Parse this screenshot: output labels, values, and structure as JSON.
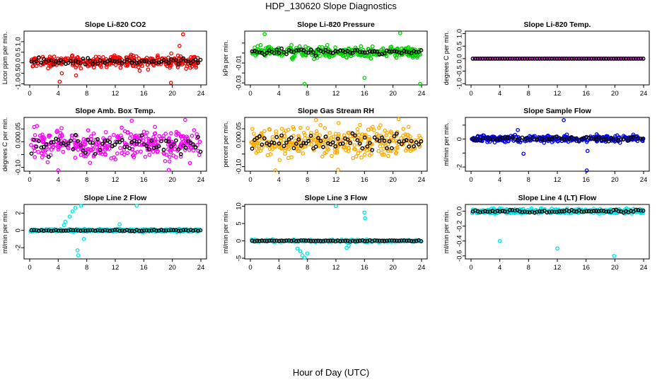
{
  "title": "HDP_130620  Slope Diagnostics",
  "xlabel": "Hour of Day (UTC)",
  "chart_data": [
    {
      "type": "scatter",
      "title": "Slope Li-820 CO2",
      "ylabel": "Licor ppm per min.",
      "xlim": [
        0,
        24
      ],
      "xticks": [
        0,
        4,
        8,
        12,
        16,
        20,
        24
      ],
      "ylim": [
        -1.05,
        1.5
      ],
      "yticks": [
        -1.0,
        -0.5,
        0.0,
        0.5,
        1.0
      ],
      "ytick_labels": [
        "-1.0",
        "-0.5",
        "0.0",
        "0.5",
        "1.0"
      ],
      "color": "#ff0000",
      "center": 0.05,
      "spread": 0.22,
      "outliers": [
        {
          "x": 21.5,
          "y": 1.35
        },
        {
          "x": 21.0,
          "y": 0.8
        },
        {
          "x": 4.5,
          "y": -0.5
        },
        {
          "x": 19.8,
          "y": -0.95
        },
        {
          "x": 4.2,
          "y": -0.9
        },
        {
          "x": 6.5,
          "y": -0.6
        }
      ]
    },
    {
      "type": "scatter",
      "title": "Slope Li-820 Pressure",
      "ylabel": "kPa per min.",
      "xlim": [
        0,
        24
      ],
      "xticks": [
        0,
        4,
        8,
        12,
        16,
        20,
        24
      ],
      "ylim": [
        -0.032,
        0.022
      ],
      "yticks": [
        -0.03,
        -0.02,
        -0.01,
        0.0,
        0.01
      ],
      "ytick_labels": [
        "-0.03",
        "",
        "-0.01",
        "",
        ""
      ],
      "color": "#00d000",
      "center": 0.001,
      "spread": 0.004,
      "outliers": [
        {
          "x": 7.6,
          "y": -0.031
        },
        {
          "x": 23.8,
          "y": -0.031
        },
        {
          "x": 16.0,
          "y": -0.025
        },
        {
          "x": 2.0,
          "y": 0.019
        },
        {
          "x": 21.0,
          "y": 0.02
        }
      ]
    },
    {
      "type": "scatter",
      "title": "Slope Li-820 Temp.",
      "ylabel": "degrees C per min.",
      "xlim": [
        0,
        24
      ],
      "xticks": [
        0,
        4,
        8,
        12,
        16,
        20,
        24
      ],
      "ylim": [
        -1.05,
        1.1
      ],
      "yticks": [
        -1.0,
        -0.5,
        0.0,
        0.5,
        1.0
      ],
      "ytick_labels": [
        "-1.0",
        "-0.5",
        "0.0",
        "0.5",
        "1.0"
      ],
      "color": "#ff00ff",
      "center": 0.0,
      "spread": 0.0,
      "regular": true,
      "outliers": []
    },
    {
      "type": "scatter",
      "title": "Slope Amb. Box Temp.",
      "ylabel": "degrees C per min.",
      "xlim": [
        0,
        24
      ],
      "xticks": [
        0,
        4,
        8,
        12,
        16,
        20,
        24
      ],
      "ylim": [
        -0.115,
        0.095
      ],
      "yticks": [
        -0.1,
        -0.05,
        0.0,
        0.05
      ],
      "ytick_labels": [
        "-0.10",
        "",
        "0.00",
        "0.05"
      ],
      "color": "#ff00ff",
      "center": -0.01,
      "spread": 0.045,
      "outliers": [
        {
          "x": 4.0,
          "y": -0.112
        },
        {
          "x": 14.3,
          "y": 0.082
        },
        {
          "x": 21.8,
          "y": 0.085
        },
        {
          "x": 19.5,
          "y": -0.11
        }
      ]
    },
    {
      "type": "scatter",
      "title": "Slope Gas Stream RH",
      "ylabel": "percent per min.",
      "xlim": [
        0,
        24
      ],
      "xticks": [
        0,
        4,
        8,
        12,
        16,
        20,
        24
      ],
      "ylim": [
        -0.118,
        0.095
      ],
      "yticks": [
        -0.1,
        -0.05,
        0.0,
        0.05
      ],
      "ytick_labels": [
        "-0.10",
        "",
        "0.00",
        "0.05"
      ],
      "color": "#ffaa00",
      "center": 0.0,
      "spread": 0.042,
      "outliers": [
        {
          "x": 3.5,
          "y": -0.115
        },
        {
          "x": 9.2,
          "y": 0.085
        },
        {
          "x": 20.8,
          "y": 0.088
        },
        {
          "x": 12.3,
          "y": -0.112
        }
      ]
    },
    {
      "type": "scatter",
      "title": "Slope Sample Flow",
      "ylabel": "ml/min per min.",
      "xlim": [
        0,
        24
      ],
      "xticks": [
        0,
        4,
        8,
        12,
        16,
        20,
        24
      ],
      "ylim": [
        -2.3,
        1.55
      ],
      "yticks": [
        -2,
        -1,
        0,
        1
      ],
      "ytick_labels": [
        "-2",
        "",
        "0",
        ""
      ],
      "color": "#0000ff",
      "center": 0.02,
      "spread": 0.18,
      "outliers": [
        {
          "x": 16.1,
          "y": -2.25
        },
        {
          "x": 7.3,
          "y": -1.05
        },
        {
          "x": 12.9,
          "y": 1.35
        },
        {
          "x": 16.2,
          "y": -0.85
        },
        {
          "x": 6.5,
          "y": 0.65
        }
      ]
    },
    {
      "type": "scatter",
      "title": "Slope Line 2 Flow",
      "ylabel": "ml/min per min.",
      "xlim": [
        0,
        24
      ],
      "xticks": [
        0,
        4,
        8,
        12,
        16,
        20,
        24
      ],
      "ylim": [
        -3.3,
        3.0
      ],
      "yticks": [
        -2,
        0,
        2
      ],
      "ytick_labels": [
        "-2",
        "0",
        "2"
      ],
      "color": "#00e5e5",
      "center": 0.0,
      "spread": 0.12,
      "outliers": [
        {
          "x": 5.0,
          "y": 1.0
        },
        {
          "x": 5.6,
          "y": 1.6
        },
        {
          "x": 6.0,
          "y": 2.2
        },
        {
          "x": 6.4,
          "y": 2.6
        },
        {
          "x": 7.2,
          "y": 2.85
        },
        {
          "x": 6.7,
          "y": -2.3
        },
        {
          "x": 6.8,
          "y": -2.9
        },
        {
          "x": 15.0,
          "y": 2.85
        },
        {
          "x": 12.6,
          "y": 0.7
        },
        {
          "x": 4.8,
          "y": 0.6
        },
        {
          "x": 7.6,
          "y": -1.0
        }
      ]
    },
    {
      "type": "scatter",
      "title": "Slope Line 3 Flow",
      "ylabel": "ml/min per min.",
      "xlim": [
        0,
        24
      ],
      "xticks": [
        0,
        4,
        8,
        12,
        16,
        20,
        24
      ],
      "ylim": [
        -5.2,
        10.5
      ],
      "yticks": [
        -5,
        0,
        5,
        10
      ],
      "ytick_labels": [
        "-5",
        "0",
        "5",
        "10"
      ],
      "color": "#00e5e5",
      "center": 0.0,
      "spread": 0.25,
      "outliers": [
        {
          "x": 12.0,
          "y": 10.0
        },
        {
          "x": 16.0,
          "y": 8.2
        },
        {
          "x": 16.1,
          "y": 6.5
        },
        {
          "x": 7.0,
          "y": -3.0
        },
        {
          "x": 7.3,
          "y": -4.2
        },
        {
          "x": 7.6,
          "y": -4.8
        },
        {
          "x": 8.0,
          "y": -3.6
        },
        {
          "x": 13.5,
          "y": -2.0
        },
        {
          "x": 6.6,
          "y": -2.2
        },
        {
          "x": 13.8,
          "y": -1.4
        }
      ]
    },
    {
      "type": "scatter",
      "title": "Slope Line 4 (LT) Flow",
      "ylabel": "ml/min per min.",
      "xlim": [
        0,
        24
      ],
      "xticks": [
        0,
        4,
        8,
        12,
        16,
        20,
        24
      ],
      "ylim": [
        -0.64,
        0.09
      ],
      "yticks": [
        -0.6,
        -0.4,
        -0.2,
        0.0
      ],
      "ytick_labels": [
        "-0.6",
        "-0.4",
        "-0.2",
        "0.0"
      ],
      "color": "#00e5e5",
      "center": 0.0,
      "spread": 0.025,
      "outliers": [
        {
          "x": 4.0,
          "y": -0.4
        },
        {
          "x": 12.0,
          "y": -0.5
        },
        {
          "x": 19.9,
          "y": -0.6
        }
      ]
    }
  ]
}
